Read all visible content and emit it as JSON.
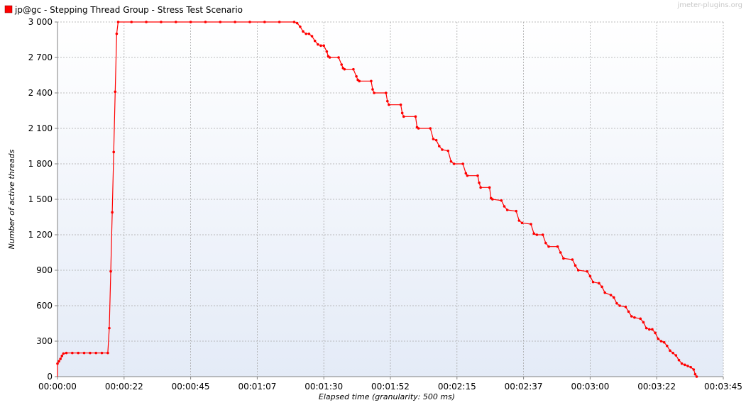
{
  "watermark": "jmeter-plugins.org",
  "chart_data": {
    "type": "line",
    "title": "",
    "xlabel": "Elapsed time (granularity: 500 ms)",
    "ylabel": "Number of active threads",
    "xlim": [
      0,
      225
    ],
    "ylim": [
      0,
      3000
    ],
    "grid": true,
    "legend_position": "top-left",
    "x_tick_values": [
      0,
      22.5,
      45,
      67.5,
      90,
      112.5,
      135,
      157.5,
      180,
      202.5,
      225
    ],
    "x_tick_labels": [
      "00:00:00",
      "00:00:22",
      "00:00:45",
      "00:01:07",
      "00:01:30",
      "00:01:52",
      "00:02:15",
      "00:02:37",
      "00:03:00",
      "00:03:22",
      "00:03:45"
    ],
    "y_tick_values": [
      0,
      300,
      600,
      900,
      1200,
      1500,
      1800,
      2100,
      2400,
      2700,
      3000
    ],
    "y_tick_labels": [
      "0",
      "300",
      "600",
      "900",
      "1 200",
      "1 500",
      "1 800",
      "2 100",
      "2 400",
      "2 700",
      "3 000"
    ],
    "series": [
      {
        "name": "jp@gc - Stepping Thread Group -  Stress Test Scenario",
        "color": "#ff0000",
        "points": [
          [
            0,
            110
          ],
          [
            0.5,
            130
          ],
          [
            1,
            150
          ],
          [
            1.5,
            175
          ],
          [
            2,
            195
          ],
          [
            3,
            200
          ],
          [
            5,
            200
          ],
          [
            7,
            200
          ],
          [
            9,
            200
          ],
          [
            11,
            200
          ],
          [
            13,
            200
          ],
          [
            15,
            200
          ],
          [
            17,
            200
          ],
          [
            17.5,
            410
          ],
          [
            18,
            890
          ],
          [
            18.5,
            1390
          ],
          [
            19,
            1900
          ],
          [
            19.5,
            2410
          ],
          [
            20,
            2900
          ],
          [
            20.5,
            3000
          ],
          [
            25,
            3000
          ],
          [
            30,
            3000
          ],
          [
            35,
            3000
          ],
          [
            40,
            3000
          ],
          [
            45,
            3000
          ],
          [
            50,
            3000
          ],
          [
            55,
            3000
          ],
          [
            60,
            3000
          ],
          [
            65,
            3000
          ],
          [
            70,
            3000
          ],
          [
            75,
            3000
          ],
          [
            80,
            3000
          ],
          [
            81,
            2990
          ],
          [
            82,
            2960
          ],
          [
            83,
            2920
          ],
          [
            84,
            2900
          ],
          [
            85,
            2900
          ],
          [
            86,
            2880
          ],
          [
            87,
            2840
          ],
          [
            88,
            2810
          ],
          [
            89,
            2800
          ],
          [
            90,
            2800
          ],
          [
            91,
            2750
          ],
          [
            91.5,
            2710
          ],
          [
            92,
            2700
          ],
          [
            95,
            2700
          ],
          [
            96,
            2640
          ],
          [
            96.5,
            2610
          ],
          [
            97,
            2600
          ],
          [
            100,
            2600
          ],
          [
            101,
            2540
          ],
          [
            101.5,
            2510
          ],
          [
            102,
            2500
          ],
          [
            106,
            2500
          ],
          [
            106.5,
            2430
          ],
          [
            107,
            2400
          ],
          [
            111,
            2400
          ],
          [
            111.5,
            2330
          ],
          [
            112,
            2300
          ],
          [
            116,
            2300
          ],
          [
            116.5,
            2230
          ],
          [
            117,
            2200
          ],
          [
            121,
            2200
          ],
          [
            121.5,
            2110
          ],
          [
            122,
            2100
          ],
          [
            126,
            2100
          ],
          [
            127,
            2010
          ],
          [
            128,
            2000
          ],
          [
            129,
            1950
          ],
          [
            130,
            1920
          ],
          [
            132,
            1910
          ],
          [
            133,
            1820
          ],
          [
            134,
            1800
          ],
          [
            137,
            1800
          ],
          [
            138,
            1720
          ],
          [
            138.5,
            1700
          ],
          [
            142,
            1700
          ],
          [
            142.5,
            1640
          ],
          [
            143,
            1600
          ],
          [
            146,
            1600
          ],
          [
            146.5,
            1510
          ],
          [
            147,
            1500
          ],
          [
            150,
            1490
          ],
          [
            151,
            1440
          ],
          [
            152,
            1410
          ],
          [
            155,
            1400
          ],
          [
            156,
            1320
          ],
          [
            157,
            1300
          ],
          [
            160,
            1290
          ],
          [
            161,
            1210
          ],
          [
            162,
            1200
          ],
          [
            164,
            1200
          ],
          [
            165,
            1130
          ],
          [
            166,
            1100
          ],
          [
            169,
            1100
          ],
          [
            170,
            1050
          ],
          [
            171,
            1000
          ],
          [
            174,
            990
          ],
          [
            175,
            940
          ],
          [
            176,
            900
          ],
          [
            179,
            890
          ],
          [
            180,
            850
          ],
          [
            181,
            800
          ],
          [
            183,
            790
          ],
          [
            184,
            760
          ],
          [
            185,
            710
          ],
          [
            187,
            690
          ],
          [
            188,
            670
          ],
          [
            189,
            620
          ],
          [
            190,
            600
          ],
          [
            192,
            590
          ],
          [
            193,
            550
          ],
          [
            194,
            510
          ],
          [
            195,
            500
          ],
          [
            197,
            490
          ],
          [
            198,
            460
          ],
          [
            199,
            410
          ],
          [
            200,
            400
          ],
          [
            201,
            400
          ],
          [
            202,
            370
          ],
          [
            203,
            320
          ],
          [
            204,
            300
          ],
          [
            205,
            290
          ],
          [
            206,
            260
          ],
          [
            207,
            220
          ],
          [
            208,
            200
          ],
          [
            209,
            180
          ],
          [
            210,
            140
          ],
          [
            211,
            110
          ],
          [
            212,
            100
          ],
          [
            213,
            90
          ],
          [
            214,
            80
          ],
          [
            215,
            60
          ],
          [
            215.5,
            20
          ],
          [
            216,
            0
          ]
        ]
      }
    ]
  }
}
